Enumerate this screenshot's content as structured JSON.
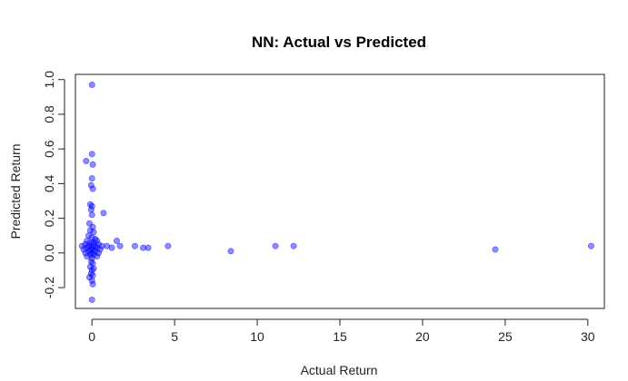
{
  "chart_data": {
    "type": "scatter",
    "title": "NN: Actual vs Predicted",
    "xlabel": "Actual Return",
    "ylabel": "Predicted Return",
    "xlim": [
      -1.0,
      31.0
    ],
    "ylim": [
      -0.32,
      1.03
    ],
    "xticks": [
      0,
      5,
      10,
      15,
      20,
      25,
      30
    ],
    "yticks": [
      -0.2,
      0.0,
      0.2,
      0.4,
      0.6,
      0.8,
      1.0
    ],
    "xtick_labels": [
      "0",
      "5",
      "10",
      "15",
      "20",
      "25",
      "30"
    ],
    "ytick_labels": [
      "-0.2",
      "0.0",
      "0.2",
      "0.4",
      "0.6",
      "0.8",
      "1.0"
    ],
    "point_color": "#0000FF",
    "point_opacity": 0.45,
    "grid": false,
    "points": [
      {
        "x": 0.0,
        "y": 0.97
      },
      {
        "x": 0.0,
        "y": 0.57
      },
      {
        "x": -0.35,
        "y": 0.53
      },
      {
        "x": 0.05,
        "y": 0.51
      },
      {
        "x": 0.0,
        "y": 0.43
      },
      {
        "x": -0.05,
        "y": 0.39
      },
      {
        "x": 0.05,
        "y": 0.37
      },
      {
        "x": -0.1,
        "y": 0.28
      },
      {
        "x": 0.0,
        "y": 0.27
      },
      {
        "x": -0.05,
        "y": 0.25
      },
      {
        "x": 0.0,
        "y": 0.22
      },
      {
        "x": 0.7,
        "y": 0.23
      },
      {
        "x": -0.15,
        "y": 0.17
      },
      {
        "x": 0.05,
        "y": 0.15
      },
      {
        "x": -0.1,
        "y": 0.13
      },
      {
        "x": 0.1,
        "y": 0.12
      },
      {
        "x": -0.2,
        "y": 0.1
      },
      {
        "x": 0.0,
        "y": 0.09
      },
      {
        "x": 0.2,
        "y": 0.08
      },
      {
        "x": -0.3,
        "y": 0.07
      },
      {
        "x": 0.3,
        "y": 0.07
      },
      {
        "x": -0.1,
        "y": 0.06
      },
      {
        "x": 0.1,
        "y": 0.06
      },
      {
        "x": -0.4,
        "y": 0.05
      },
      {
        "x": 0.4,
        "y": 0.05
      },
      {
        "x": 0.0,
        "y": 0.05
      },
      {
        "x": -0.2,
        "y": 0.04
      },
      {
        "x": 0.2,
        "y": 0.04
      },
      {
        "x": -0.6,
        "y": 0.04
      },
      {
        "x": 0.6,
        "y": 0.04
      },
      {
        "x": -0.3,
        "y": 0.03
      },
      {
        "x": 0.3,
        "y": 0.03
      },
      {
        "x": 0.0,
        "y": 0.03
      },
      {
        "x": -0.1,
        "y": 0.02
      },
      {
        "x": 0.1,
        "y": 0.02
      },
      {
        "x": -0.5,
        "y": 0.02
      },
      {
        "x": 0.5,
        "y": 0.02
      },
      {
        "x": -0.2,
        "y": 0.01
      },
      {
        "x": 0.2,
        "y": 0.01
      },
      {
        "x": 0.0,
        "y": 0.0
      },
      {
        "x": -0.4,
        "y": 0.0
      },
      {
        "x": 0.4,
        "y": 0.0
      },
      {
        "x": -0.1,
        "y": -0.01
      },
      {
        "x": 0.1,
        "y": -0.01
      },
      {
        "x": -0.3,
        "y": -0.02
      },
      {
        "x": 0.3,
        "y": -0.02
      },
      {
        "x": 0.0,
        "y": -0.03
      },
      {
        "x": -0.05,
        "y": -0.05
      },
      {
        "x": 0.05,
        "y": -0.06
      },
      {
        "x": -0.1,
        "y": -0.08
      },
      {
        "x": 0.1,
        "y": -0.09
      },
      {
        "x": 0.0,
        "y": -0.1
      },
      {
        "x": -0.05,
        "y": -0.12
      },
      {
        "x": 0.05,
        "y": -0.13
      },
      {
        "x": -0.15,
        "y": -0.14
      },
      {
        "x": 0.0,
        "y": -0.16
      },
      {
        "x": 0.05,
        "y": -0.18
      },
      {
        "x": 0.0,
        "y": -0.27
      },
      {
        "x": 0.9,
        "y": 0.04
      },
      {
        "x": 1.2,
        "y": 0.03
      },
      {
        "x": 1.5,
        "y": 0.07
      },
      {
        "x": 1.7,
        "y": 0.04
      },
      {
        "x": 2.6,
        "y": 0.04
      },
      {
        "x": 3.1,
        "y": 0.03
      },
      {
        "x": 3.4,
        "y": 0.03
      },
      {
        "x": 4.6,
        "y": 0.04
      },
      {
        "x": 8.4,
        "y": 0.01
      },
      {
        "x": 11.1,
        "y": 0.04
      },
      {
        "x": 12.2,
        "y": 0.04
      },
      {
        "x": 24.4,
        "y": 0.02
      },
      {
        "x": 30.2,
        "y": 0.04
      }
    ]
  }
}
